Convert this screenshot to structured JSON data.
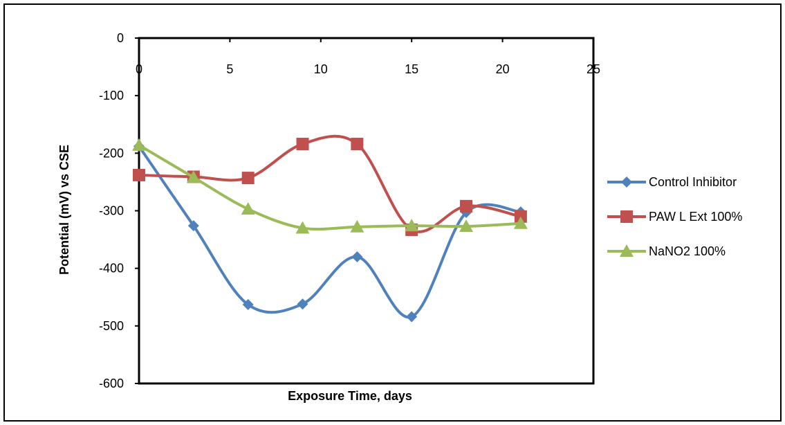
{
  "chart_data": {
    "type": "line",
    "xlabel": "Exposure Time, days",
    "ylabel": "Potential (mV) vs CSE",
    "xlim": [
      0,
      25
    ],
    "ylim": [
      -600,
      0
    ],
    "x_ticks": [
      "0",
      "5",
      "10",
      "15",
      "20",
      "25"
    ],
    "y_ticks": [
      "0",
      "-100",
      "-200",
      "-300",
      "-400",
      "-500",
      "-600"
    ],
    "x_axis_position": "top",
    "grid": false,
    "legend_position": "right",
    "smooth": true,
    "x": [
      0,
      3,
      6,
      9,
      12,
      15,
      18,
      21
    ],
    "series": [
      {
        "name": "Control Inhibitor",
        "color": "#4F81BD",
        "marker": "diamond",
        "values": [
          -188,
          -326,
          -463,
          -462,
          -380,
          -484,
          -303,
          -302
        ]
      },
      {
        "name": "PAW L Ext 100%",
        "color": "#C0504D",
        "marker": "square",
        "values": [
          -238,
          -241,
          -243,
          -184,
          -184,
          -333,
          -292,
          -310
        ]
      },
      {
        "name": "NaNO2 100%",
        "color": "#9BBB59",
        "marker": "triangle",
        "values": [
          -186,
          -242,
          -297,
          -330,
          -328,
          -326,
          -327,
          -322
        ]
      }
    ]
  }
}
